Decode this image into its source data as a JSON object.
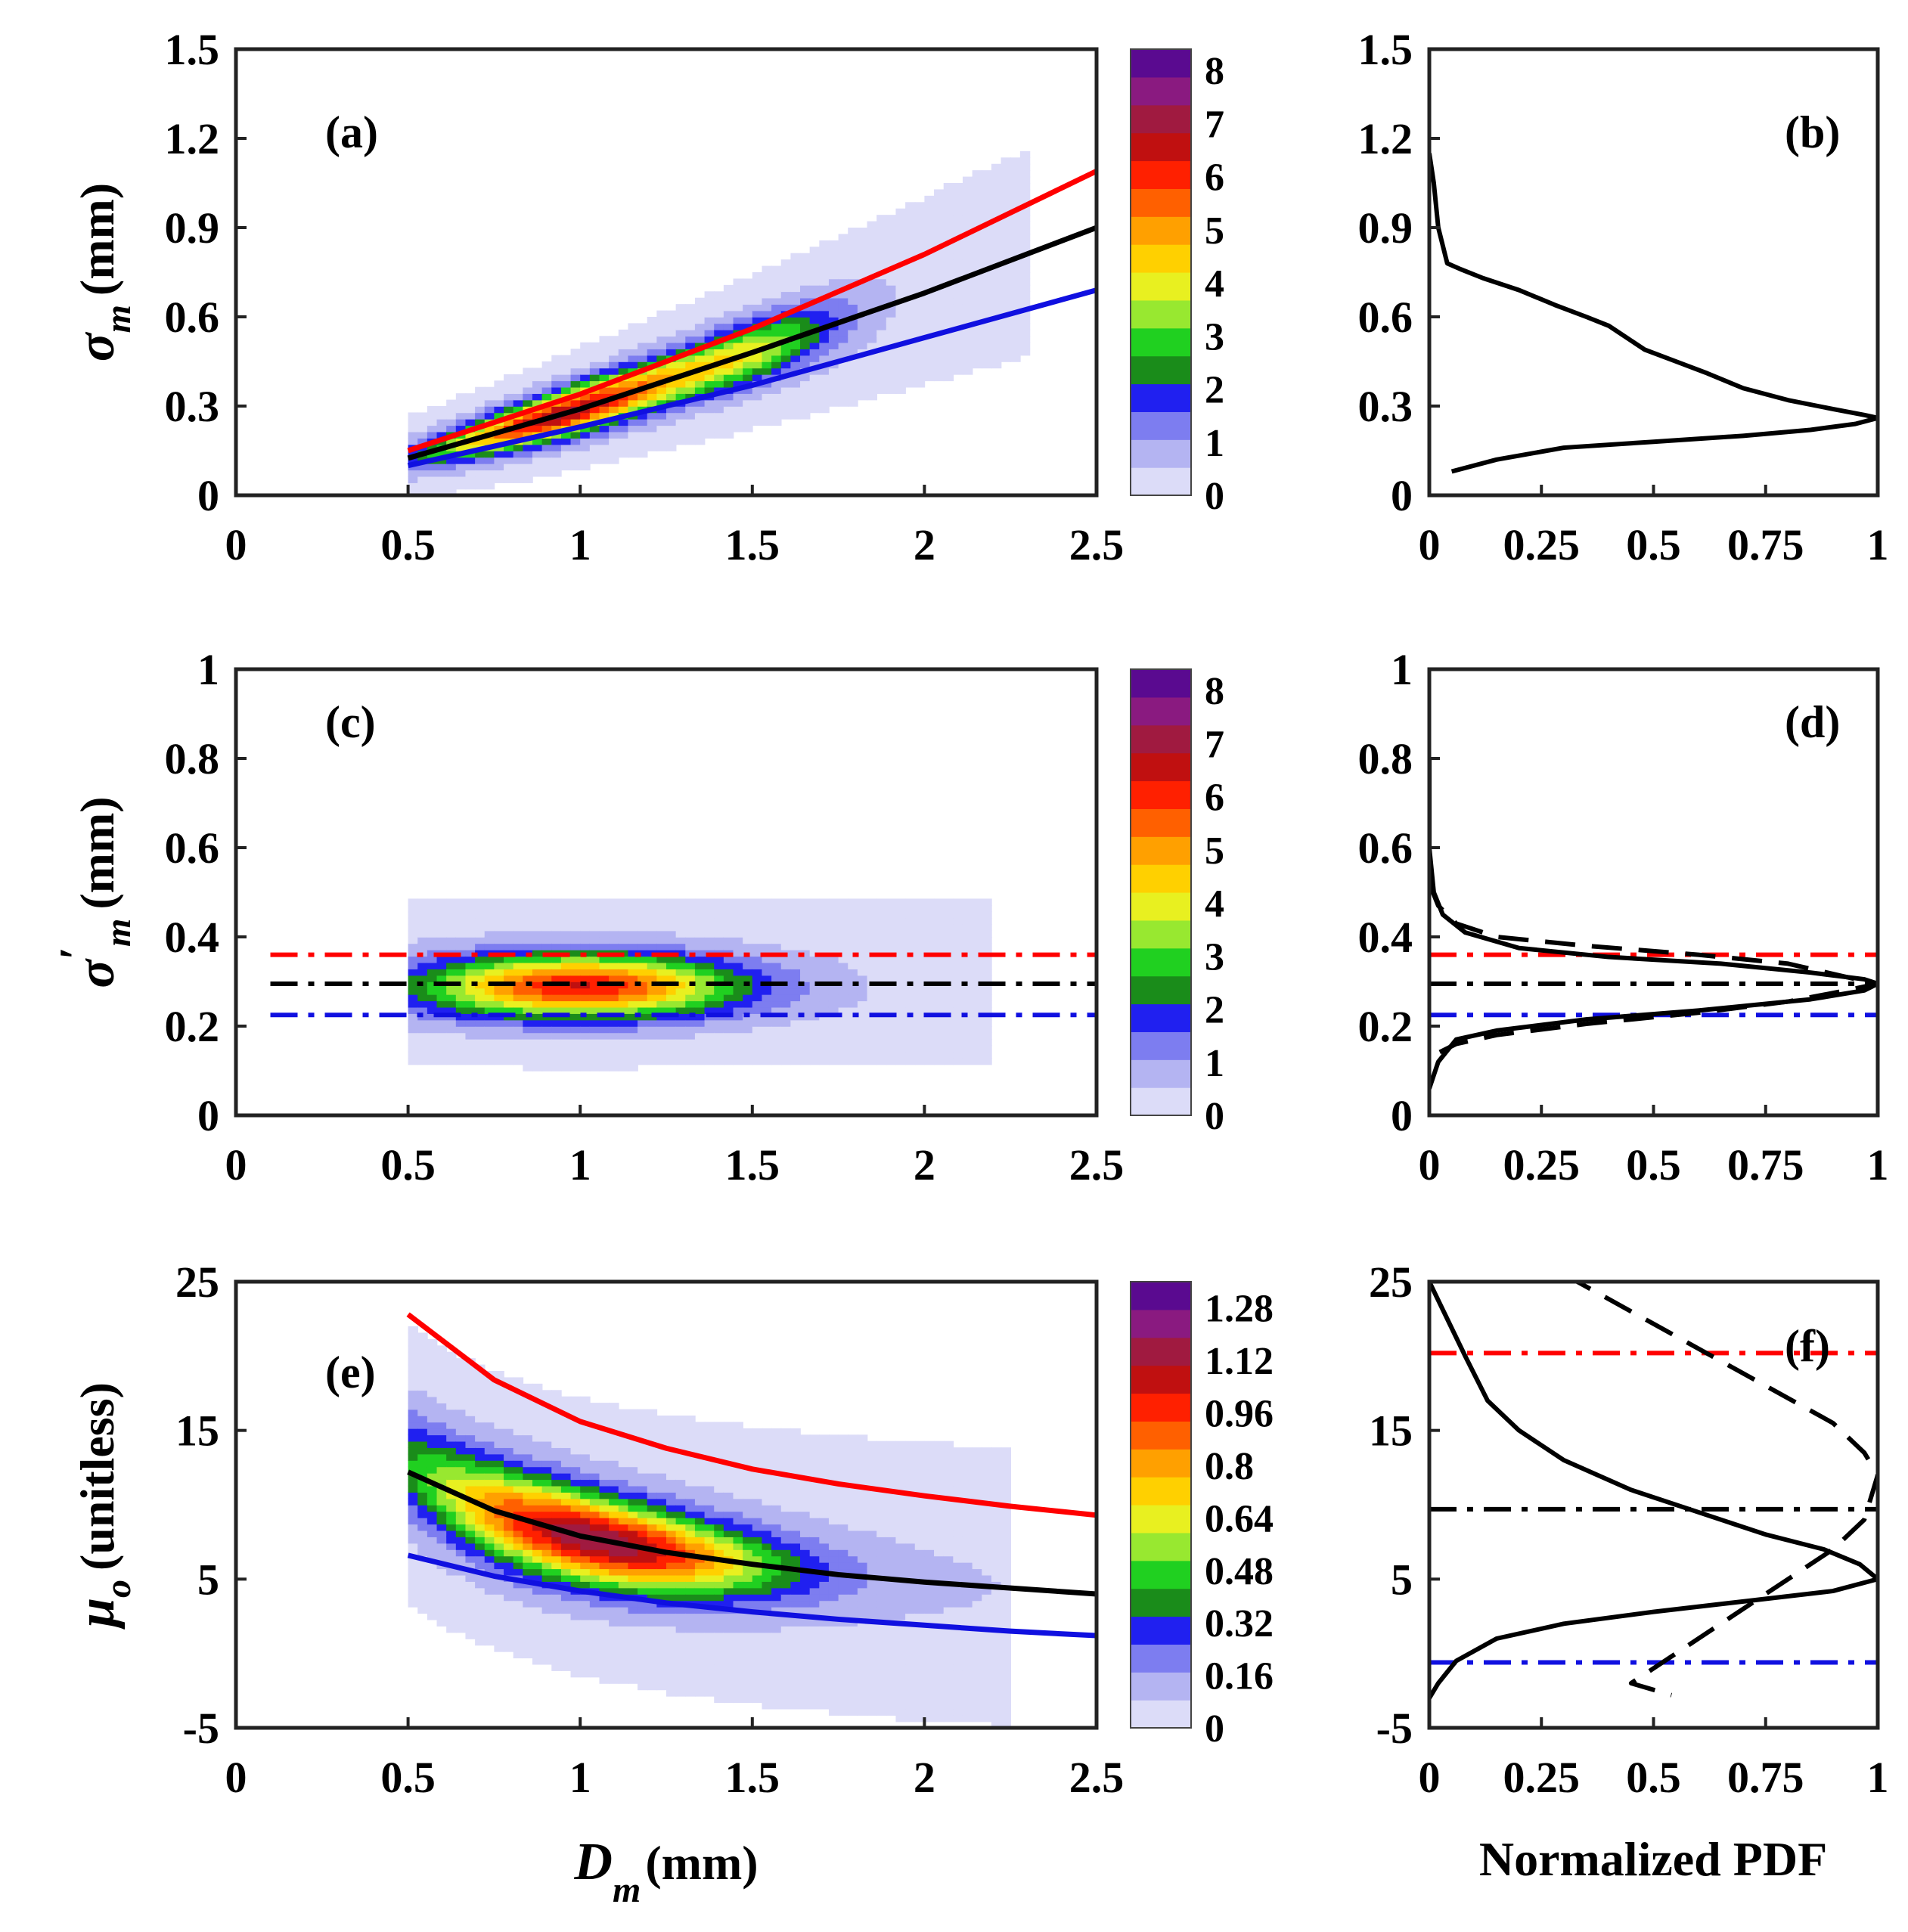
{
  "figure": {
    "panels": [
      {
        "id": "a",
        "label": "(a)",
        "kind": "contour",
        "xticks": [
          "0",
          "0.5",
          "1",
          "1.5",
          "2",
          "2.5"
        ],
        "yticks": [
          "0",
          "0.3",
          "0.6",
          "0.9",
          "1.2",
          "1.5"
        ],
        "colorbar_ticks": [
          "0",
          "1",
          "2",
          "3",
          "4",
          "5",
          "6",
          "7",
          "8"
        ]
      },
      {
        "id": "b",
        "label": "(b)",
        "kind": "pdf",
        "xticks": [
          "0",
          "0.25",
          "0.5",
          "0.75",
          "1"
        ],
        "yticks": [
          "0",
          "0.3",
          "0.6",
          "0.9",
          "1.2",
          "1.5"
        ]
      },
      {
        "id": "c",
        "label": "(c)",
        "kind": "contour",
        "xticks": [
          "0",
          "0.5",
          "1",
          "1.5",
          "2",
          "2.5"
        ],
        "yticks": [
          "0",
          "0.2",
          "0.4",
          "0.6",
          "0.8",
          "1"
        ],
        "colorbar_ticks": [
          "0",
          "1",
          "2",
          "3",
          "4",
          "5",
          "6",
          "7",
          "8"
        ]
      },
      {
        "id": "d",
        "label": "(d)",
        "kind": "pdf",
        "xticks": [
          "0",
          "0.25",
          "0.5",
          "0.75",
          "1"
        ],
        "yticks": [
          "0",
          "0.2",
          "0.4",
          "0.6",
          "0.8",
          "1"
        ]
      },
      {
        "id": "e",
        "label": "(e)",
        "kind": "contour",
        "xticks": [
          "0",
          "0.5",
          "1",
          "1.5",
          "2",
          "2.5"
        ],
        "yticks": [
          "-5",
          "5",
          "15",
          "25"
        ],
        "colorbar_ticks": [
          "0",
          "0.16",
          "0.32",
          "0.48",
          "0.64",
          "0.8",
          "0.96",
          "1.12",
          "1.28"
        ]
      },
      {
        "id": "f",
        "label": "(f)",
        "kind": "pdf",
        "xticks": [
          "0",
          "0.25",
          "0.5",
          "0.75",
          "1"
        ],
        "yticks": [
          "-5",
          "5",
          "15",
          "25"
        ]
      }
    ],
    "axis_titles": {
      "a_y_main": "σ",
      "a_y_sub": "m",
      "a_y_unit": "(mm)",
      "c_y_main": "σ",
      "c_y_prime": "′",
      "c_y_sub": "m",
      "c_y_unit": "(mm)",
      "e_y_main": "μ",
      "e_y_sub": "o",
      "e_y_unit": "(unitless)",
      "e_x_main": "D",
      "e_x_sub": "m",
      "e_x_unit": "(mm)",
      "f_x": "Normalized PDF"
    }
  },
  "colors": {
    "red": "#ff0000",
    "black": "#000000",
    "blue": "#1010e0",
    "colormap": [
      "#dcdcf8",
      "#b4b4f2",
      "#7d7df0",
      "#2020f0",
      "#1a8c1a",
      "#20d020",
      "#98e830",
      "#e8f020",
      "#ffd000",
      "#ffa000",
      "#ff6000",
      "#ff2000",
      "#c01010",
      "#a01a40",
      "#8a1a80",
      "#5a0a90"
    ]
  },
  "chart_data": [
    {
      "panel": "a",
      "type": "contour",
      "xlim": [
        0,
        2.5
      ],
      "ylim": [
        0,
        1.5
      ],
      "colorbar": {
        "min": 0,
        "max": 8.4
      },
      "density_model": {
        "center": [
          1.0,
          0.3
        ],
        "peak": 6.5,
        "ridge": "along black curve"
      },
      "lines": [
        {
          "color": "red",
          "style": "solid",
          "x": [
            0.5,
            1.0,
            1.5,
            2.0,
            2.5
          ],
          "y": [
            0.15,
            0.34,
            0.56,
            0.81,
            1.09
          ]
        },
        {
          "color": "black",
          "style": "solid",
          "x": [
            0.5,
            1.0,
            1.5,
            2.0,
            2.5
          ],
          "y": [
            0.125,
            0.29,
            0.48,
            0.68,
            0.9
          ]
        },
        {
          "color": "blue",
          "style": "solid",
          "x": [
            0.5,
            1.0,
            1.5,
            2.0,
            2.5
          ],
          "y": [
            0.1,
            0.23,
            0.37,
            0.53,
            0.69
          ]
        }
      ]
    },
    {
      "panel": "b",
      "type": "line",
      "xlim": [
        0,
        1
      ],
      "ylim": [
        0,
        1.5
      ],
      "series": [
        {
          "color": "black",
          "style": "solid",
          "x": [
            0.0,
            0.01,
            0.02,
            0.04,
            0.07,
            0.12,
            0.2,
            0.28,
            0.35,
            0.4,
            0.44,
            0.48,
            0.55,
            0.62,
            0.7,
            0.8,
            0.9,
            0.97,
            1.0,
            0.95,
            0.85,
            0.7,
            0.5,
            0.3,
            0.15,
            0.05
          ],
          "y": [
            1.15,
            1.05,
            0.9,
            0.78,
            0.76,
            0.73,
            0.69,
            0.64,
            0.6,
            0.57,
            0.53,
            0.49,
            0.45,
            0.41,
            0.36,
            0.32,
            0.29,
            0.27,
            0.26,
            0.24,
            0.22,
            0.2,
            0.18,
            0.16,
            0.12,
            0.08
          ]
        }
      ]
    },
    {
      "panel": "c",
      "type": "contour",
      "xlim": [
        0,
        2.5
      ],
      "ylim": [
        0,
        1
      ],
      "colorbar": {
        "min": 0,
        "max": 8.4
      },
      "density_model": {
        "center": [
          1.0,
          0.29
        ],
        "peak": 6.0
      },
      "lines": [
        {
          "color": "red",
          "style": "dashdot",
          "x": [
            0.1,
            2.5
          ],
          "y": [
            0.36,
            0.36
          ]
        },
        {
          "color": "black",
          "style": "dashdot",
          "x": [
            0.1,
            2.5
          ],
          "y": [
            0.295,
            0.295
          ]
        },
        {
          "color": "blue",
          "style": "dashdot",
          "x": [
            0.1,
            2.5
          ],
          "y": [
            0.225,
            0.225
          ]
        }
      ]
    },
    {
      "panel": "d",
      "type": "line",
      "xlim": [
        0,
        1
      ],
      "ylim": [
        0,
        1
      ],
      "series": [
        {
          "color": "black",
          "style": "solid",
          "x": [
            0.0,
            0.0,
            0.01,
            0.03,
            0.08,
            0.2,
            0.4,
            0.65,
            0.85,
            0.97,
            1.0,
            0.97,
            0.85,
            0.6,
            0.35,
            0.15,
            0.06,
            0.02,
            0.0
          ],
          "y": [
            0.8,
            0.6,
            0.5,
            0.45,
            0.41,
            0.375,
            0.355,
            0.34,
            0.32,
            0.305,
            0.295,
            0.28,
            0.26,
            0.235,
            0.215,
            0.19,
            0.17,
            0.12,
            0.06
          ]
        },
        {
          "color": "black",
          "style": "dashed",
          "x": [
            0.0,
            0.02,
            0.06,
            0.15,
            0.35,
            0.6,
            0.8,
            0.93,
            1.0,
            0.93,
            0.8,
            0.6,
            0.35,
            0.15,
            0.06,
            0.02
          ],
          "y": [
            0.52,
            0.47,
            0.43,
            0.4,
            0.38,
            0.36,
            0.34,
            0.31,
            0.295,
            0.28,
            0.255,
            0.23,
            0.205,
            0.18,
            0.16,
            0.14
          ]
        }
      ],
      "lines": [
        {
          "color": "red",
          "style": "dashdot",
          "x": [
            0,
            1
          ],
          "y": [
            0.36,
            0.36
          ]
        },
        {
          "color": "black",
          "style": "dashdot",
          "x": [
            0,
            1
          ],
          "y": [
            0.295,
            0.295
          ]
        },
        {
          "color": "blue",
          "style": "dashdot",
          "x": [
            0,
            1
          ],
          "y": [
            0.225,
            0.225
          ]
        }
      ]
    },
    {
      "panel": "e",
      "type": "contour",
      "xlim": [
        0,
        2.5
      ],
      "ylim": [
        -5,
        25
      ],
      "colorbar": {
        "min": 0,
        "max": 1.36
      },
      "density_model": {
        "center": [
          1.1,
          7.0
        ],
        "peak": 1.1
      },
      "lines": [
        {
          "color": "red",
          "style": "solid",
          "x": [
            0.5,
            0.75,
            1.0,
            1.25,
            1.5,
            1.75,
            2.0,
            2.25,
            2.5
          ],
          "y": [
            22.8,
            18.4,
            15.6,
            13.8,
            12.4,
            11.4,
            10.6,
            9.9,
            9.3
          ]
        },
        {
          "color": "black",
          "style": "solid",
          "x": [
            0.5,
            0.75,
            1.0,
            1.25,
            1.5,
            1.75,
            2.0,
            2.25,
            2.5
          ],
          "y": [
            12.2,
            9.6,
            7.9,
            6.8,
            6.0,
            5.3,
            4.8,
            4.4,
            4.0
          ]
        },
        {
          "color": "blue",
          "style": "solid",
          "x": [
            0.5,
            0.75,
            1.0,
            1.25,
            1.5,
            1.75,
            2.0,
            2.25,
            2.5
          ],
          "y": [
            6.6,
            5.2,
            4.2,
            3.4,
            2.8,
            2.3,
            1.9,
            1.5,
            1.2
          ]
        }
      ]
    },
    {
      "panel": "f",
      "type": "line",
      "xlim": [
        0,
        1
      ],
      "ylim": [
        -5,
        25
      ],
      "series": [
        {
          "color": "black",
          "style": "solid",
          "x": [
            0.0,
            0.04,
            0.08,
            0.13,
            0.2,
            0.3,
            0.45,
            0.6,
            0.75,
            0.88,
            0.96,
            1.0,
            0.9,
            0.7,
            0.5,
            0.3,
            0.15,
            0.06,
            0.02,
            0.0
          ],
          "y": [
            25,
            22.5,
            20,
            17,
            15,
            13,
            11,
            9.5,
            8,
            7,
            6,
            5,
            4.2,
            3.5,
            2.8,
            2,
            1,
            -0.5,
            -2,
            -3
          ]
        },
        {
          "color": "black",
          "style": "dashed",
          "x": [
            0.3,
            0.45,
            0.6,
            0.75,
            0.9,
            0.97,
            1.0,
            0.97,
            0.9,
            0.75,
            0.6,
            0.45,
            0.54
          ],
          "y": [
            25.5,
            23,
            20.5,
            18,
            15.5,
            13.5,
            12,
            9,
            7,
            4,
            1,
            -2,
            -2.8
          ]
        }
      ],
      "lines": [
        {
          "color": "red",
          "style": "dashdot",
          "x": [
            0,
            1
          ],
          "y": [
            20.2,
            20.2
          ]
        },
        {
          "color": "black",
          "style": "dashdot",
          "x": [
            0,
            1
          ],
          "y": [
            9.7,
            9.7
          ]
        },
        {
          "color": "blue",
          "style": "dashdot",
          "x": [
            0,
            1
          ],
          "y": [
            -0.6,
            -0.6
          ]
        }
      ]
    }
  ]
}
